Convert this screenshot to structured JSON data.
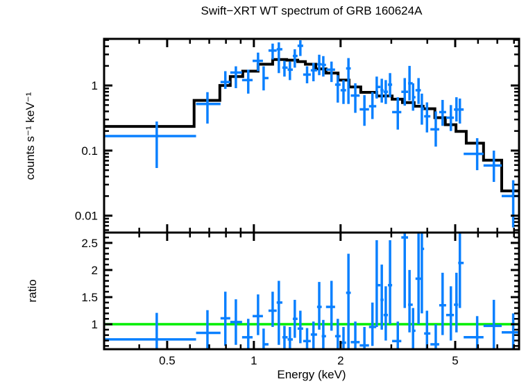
{
  "chart_data": {
    "type": "scatter",
    "title": "Swift−XRT WT spectrum of GRB 160624A",
    "x_axis": {
      "label": "Energy (keV)",
      "scale": "log",
      "range": [
        0.302,
        8.33
      ],
      "major_ticks": [
        0.5,
        1,
        2,
        5
      ],
      "major_tick_labels": [
        "0.5",
        "1",
        "2",
        "5"
      ],
      "minor_ticks": [
        0.4,
        0.6,
        0.7,
        0.8,
        0.9,
        3,
        4,
        6,
        7,
        8
      ]
    },
    "panels": [
      {
        "name": "spectrum",
        "ylabel": "counts s⁻¹ keV⁻¹",
        "scale": "log",
        "range": [
          0.0055,
          5.2
        ],
        "major_ticks": [
          1,
          0.1,
          0.01
        ],
        "major_tick_labels": [
          "1",
          "0.1",
          "0.01"
        ],
        "minor_ticks": [
          0.006,
          0.007,
          0.008,
          0.009,
          0.02,
          0.03,
          0.04,
          0.05,
          0.06,
          0.07,
          0.08,
          0.09,
          0.2,
          0.3,
          0.4,
          0.5,
          0.6,
          0.7,
          0.8,
          0.9,
          2,
          3,
          4,
          5
        ]
      },
      {
        "name": "ratio",
        "ylabel": "ratio",
        "scale": "linear",
        "range": [
          0.54,
          2.69
        ],
        "major_ticks": [
          1,
          1.5,
          2,
          2.5
        ],
        "major_tick_labels": [
          "1",
          "1.5",
          "2",
          "2.5"
        ],
        "minor_ticks": [
          0.6,
          0.7,
          0.8,
          0.9,
          1.1,
          1.2,
          1.3,
          1.4,
          1.6,
          1.7,
          1.8,
          1.9,
          2.1,
          2.2,
          2.3,
          2.4,
          2.6
        ],
        "reference_line": 1
      }
    ],
    "model_bins": [
      [
        0.302,
        0.62,
        0.235
      ],
      [
        0.62,
        0.762,
        0.59
      ],
      [
        0.762,
        0.828,
        1.0
      ],
      [
        0.828,
        0.915,
        1.37
      ],
      [
        0.915,
        1.034,
        1.66
      ],
      [
        1.034,
        1.162,
        2.12
      ],
      [
        1.162,
        1.3,
        2.51
      ],
      [
        1.3,
        1.42,
        2.45
      ],
      [
        1.42,
        1.51,
        2.33
      ],
      [
        1.51,
        1.64,
        2.12
      ],
      [
        1.64,
        1.78,
        1.8
      ],
      [
        1.78,
        1.96,
        1.55
      ],
      [
        1.96,
        2.14,
        1.21
      ],
      [
        2.14,
        2.35,
        0.95
      ],
      [
        2.35,
        2.67,
        0.785
      ],
      [
        2.67,
        3.02,
        0.69
      ],
      [
        3.02,
        3.28,
        0.615
      ],
      [
        3.28,
        3.6,
        0.545
      ],
      [
        3.6,
        3.87,
        0.48
      ],
      [
        3.87,
        4.25,
        0.44
      ],
      [
        4.25,
        4.62,
        0.32
      ],
      [
        4.62,
        5.03,
        0.25
      ],
      [
        5.03,
        5.46,
        0.197
      ],
      [
        5.46,
        6.27,
        0.13
      ],
      [
        6.27,
        7.25,
        0.071
      ],
      [
        7.25,
        8.33,
        0.024
      ]
    ],
    "points_columns": [
      "energy_keV",
      "e_lo",
      "e_hi",
      "rate",
      "rate_lo",
      "rate_hi",
      "ratio",
      "ratio_lo",
      "ratio_hi"
    ],
    "points": [
      [
        0.46,
        0.302,
        0.63,
        0.167,
        0.054,
        0.28,
        0.72,
        0.4,
        1.21
      ],
      [
        0.69,
        0.63,
        0.766,
        0.52,
        0.26,
        0.79,
        0.84,
        0.54,
        1.26
      ],
      [
        0.796,
        0.766,
        0.828,
        1.13,
        0.886,
        1.66,
        1.11,
        0.6,
        1.6
      ],
      [
        0.866,
        0.828,
        0.91,
        1.58,
        0.91,
        1.97,
        1.04,
        0.62,
        1.46
      ],
      [
        0.956,
        0.91,
        0.99,
        1.21,
        0.75,
        1.75,
        0.76,
        0.5,
        1.1
      ],
      [
        1.034,
        0.99,
        1.075,
        2.39,
        1.66,
        3.2,
        1.15,
        0.8,
        1.55
      ],
      [
        1.081,
        1.075,
        1.124,
        1.3,
        0.84,
        1.97,
        0.63,
        0.4,
        0.92
      ],
      [
        1.162,
        1.124,
        1.2,
        3.44,
        2.51,
        4.4,
        1.25,
        0.95,
        1.6
      ],
      [
        1.221,
        1.2,
        1.256,
        3.6,
        1.55,
        4.6,
        1.4,
        0.62,
        1.8
      ],
      [
        1.277,
        1.256,
        1.31,
        1.88,
        1.37,
        2.39,
        0.76,
        0.55,
        0.97
      ],
      [
        1.334,
        1.31,
        1.365,
        1.75,
        1.21,
        2.33,
        0.72,
        0.49,
        0.95
      ],
      [
        1.387,
        1.365,
        1.418,
        2.84,
        1.88,
        3.6,
        1.1,
        0.75,
        1.45
      ],
      [
        1.45,
        1.418,
        1.483,
        4.07,
        2.84,
        4.95,
        0.92,
        0.65,
        1.25
      ],
      [
        1.53,
        1.483,
        1.576,
        1.47,
        1.08,
        1.97,
        0.69,
        0.51,
        0.93
      ],
      [
        1.61,
        1.576,
        1.657,
        1.71,
        1.16,
        2.22,
        0.81,
        0.55,
        1.05
      ],
      [
        1.686,
        1.657,
        1.72,
        2.12,
        1.44,
        2.97,
        1.32,
        0.9,
        1.78
      ],
      [
        1.742,
        1.72,
        1.78,
        2.07,
        1.37,
        2.83,
        0.78,
        0.52,
        1.08
      ],
      [
        1.86,
        1.78,
        1.914,
        1.75,
        1.13,
        2.33,
        1.32,
        0.88,
        1.8
      ],
      [
        1.956,
        1.914,
        2.0,
        1.03,
        0.546,
        1.44,
        0.78,
        0.45,
        1.1
      ],
      [
        2.047,
        2.0,
        2.09,
        0.845,
        0.52,
        1.21,
        0.66,
        0.4,
        0.95
      ],
      [
        2.13,
        2.09,
        2.17,
        1.83,
        0.52,
        2.64,
        1.58,
        0.5,
        2.3
      ],
      [
        2.25,
        2.17,
        2.33,
        0.7,
        0.38,
        1.08,
        0.67,
        0.38,
        1.05
      ],
      [
        2.42,
        2.33,
        2.51,
        0.43,
        0.24,
        0.71,
        0.61,
        0.35,
        0.95
      ],
      [
        2.58,
        2.51,
        2.66,
        0.48,
        0.305,
        0.79,
        0.95,
        0.6,
        1.4
      ],
      [
        2.67,
        2.66,
        2.75,
        0.95,
        0.63,
        1.37,
        1.72,
        0.95,
        2.55
      ],
      [
        2.78,
        2.75,
        2.82,
        0.845,
        0.546,
        1.27,
        1.45,
        0.9,
        2.1
      ],
      [
        2.87,
        2.82,
        2.92,
        0.8,
        0.52,
        1.21,
        1.17,
        0.7,
        1.7
      ],
      [
        2.97,
        2.92,
        3.02,
        1.03,
        0.66,
        1.55,
        1.72,
        1.0,
        2.55
      ],
      [
        3.16,
        3.02,
        3.25,
        0.39,
        0.21,
        0.66,
        0.69,
        0.35,
        1.05
      ],
      [
        3.34,
        3.25,
        3.43,
        0.8,
        0.49,
        1.3,
        2.6,
        1.3,
        3.0
      ],
      [
        3.47,
        3.43,
        3.56,
        1.08,
        0.59,
        2.0,
        1.36,
        0.85,
        2.0
      ],
      [
        3.57,
        3.56,
        3.64,
        0.66,
        0.41,
        1.08,
        0.88,
        0.5,
        1.3
      ],
      [
        3.73,
        3.64,
        3.8,
        0.845,
        0.52,
        1.3,
        1.84,
        1.0,
        2.85
      ],
      [
        3.83,
        3.8,
        3.9,
        0.44,
        0.25,
        0.75,
        2.39,
        1.2,
        3.0
      ],
      [
        3.99,
        3.9,
        4.1,
        0.336,
        0.19,
        0.55,
        0.83,
        0.45,
        1.25
      ],
      [
        4.28,
        4.1,
        4.4,
        0.212,
        0.115,
        0.4,
        0.63,
        0.3,
        1.0
      ],
      [
        4.52,
        4.4,
        4.65,
        0.39,
        0.24,
        0.6,
        1.35,
        0.8,
        1.95
      ],
      [
        4.83,
        4.65,
        4.95,
        0.32,
        0.2,
        0.5,
        1.17,
        0.7,
        1.7
      ],
      [
        5.05,
        4.95,
        5.12,
        0.427,
        0.28,
        0.66,
        1.36,
        0.85,
        1.95
      ],
      [
        5.19,
        5.12,
        5.35,
        0.427,
        0.26,
        0.63,
        2.13,
        1.3,
        3.0
      ],
      [
        5.96,
        5.35,
        6.27,
        0.089,
        0.05,
        0.155,
        0.76,
        0.4,
        1.15
      ],
      [
        6.81,
        6.27,
        7.25,
        0.059,
        0.033,
        0.1,
        0.97,
        0.55,
        1.45
      ],
      [
        7.95,
        7.25,
        8.33,
        0.02,
        0.0066,
        0.035,
        0.85,
        0.5,
        1.2
      ]
    ],
    "colors": {
      "data": "#0a80ff",
      "model": "#000000",
      "reference": "#00ee00",
      "frame": "#000000",
      "background": "#ffffff"
    }
  }
}
